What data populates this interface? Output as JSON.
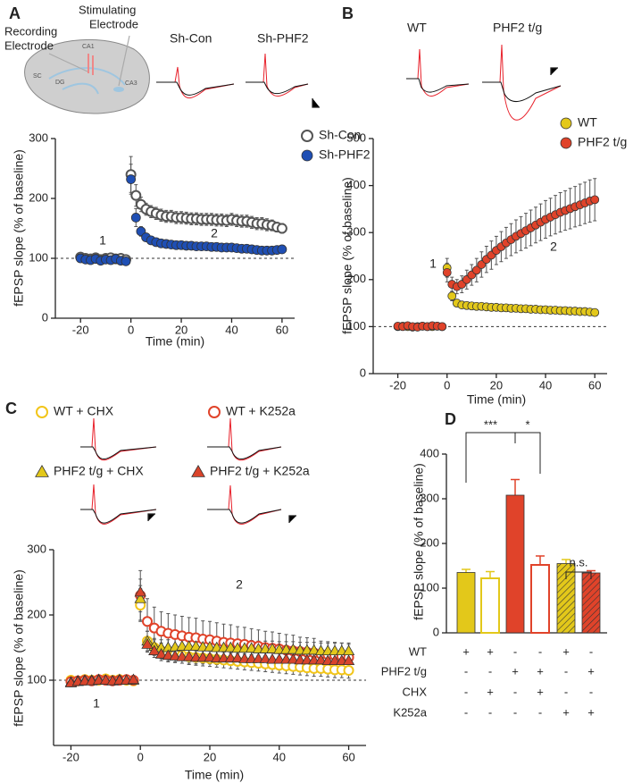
{
  "chart_data": [
    {
      "type": "scatter",
      "panel": "A",
      "x_label": "Time (min)",
      "y_label": "fEPSP slope (% of baseline)",
      "trace_labels": [
        "Sh-Con",
        "Sh-PHF2"
      ],
      "diagram_labels": {
        "recording": [
          "Recording",
          "Electrode"
        ],
        "stimulating": [
          "Stimulating",
          "Electrode"
        ],
        "regions": [
          "CA1",
          "DG",
          "SC",
          "CA3"
        ]
      },
      "annotations": [
        "1",
        "2"
      ],
      "annotation_colors": [
        "#222222",
        "#e8312a"
      ],
      "xlim": [
        -30,
        65
      ],
      "xticks": [
        -20,
        0,
        20,
        40,
        60
      ],
      "ylim": [
        0,
        300
      ],
      "yticks": [
        0,
        100,
        200,
        300
      ],
      "reference_line": 100,
      "x": [
        -20,
        -18,
        -16,
        -14,
        -12,
        -10,
        -8,
        -6,
        -4,
        -2,
        0,
        2,
        4,
        6,
        8,
        10,
        12,
        14,
        16,
        18,
        20,
        22,
        24,
        26,
        28,
        30,
        32,
        34,
        36,
        38,
        40,
        42,
        44,
        46,
        48,
        50,
        52,
        54,
        56,
        58,
        60
      ],
      "series": [
        {
          "name": "Sh-Con",
          "color": "#555555",
          "filled": false,
          "marker": "circle",
          "values": [
            102,
            100,
            99,
            101,
            98,
            100,
            101,
            99,
            100,
            98,
            240,
            205,
            190,
            182,
            178,
            175,
            172,
            170,
            170,
            168,
            168,
            167,
            166,
            166,
            165,
            165,
            165,
            164,
            164,
            163,
            165,
            163,
            162,
            162,
            160,
            158,
            158,
            156,
            155,
            152,
            150
          ],
          "errors": [
            5,
            5,
            5,
            5,
            5,
            5,
            5,
            5,
            5,
            5,
            30,
            18,
            12,
            10,
            10,
            10,
            10,
            10,
            10,
            10,
            10,
            10,
            10,
            10,
            10,
            10,
            10,
            10,
            10,
            10,
            10,
            10,
            10,
            10,
            10,
            10,
            10,
            10,
            9,
            8,
            8
          ]
        },
        {
          "name": "Sh-PHF2",
          "color": "#1f4fb4",
          "filled": true,
          "marker": "circle",
          "values": [
            100,
            98,
            97,
            99,
            96,
            98,
            97,
            99,
            96,
            95,
            232,
            168,
            145,
            135,
            130,
            127,
            125,
            124,
            123,
            122,
            122,
            121,
            121,
            120,
            120,
            120,
            119,
            119,
            118,
            118,
            118,
            117,
            116,
            116,
            115,
            114,
            113,
            113,
            113,
            114,
            115
          ],
          "errors": [
            5,
            5,
            5,
            5,
            5,
            5,
            5,
            5,
            5,
            5,
            25,
            15,
            8,
            6,
            6,
            6,
            6,
            6,
            6,
            6,
            6,
            6,
            6,
            6,
            6,
            6,
            6,
            6,
            6,
            6,
            6,
            6,
            6,
            6,
            6,
            6,
            6,
            6,
            6,
            6,
            6
          ]
        }
      ]
    },
    {
      "type": "scatter",
      "panel": "B",
      "x_label": "Time (min)",
      "y_label": "fEPSP slope (% of baseline)",
      "trace_labels": [
        "WT",
        "PHF2 t/g"
      ],
      "annotations": [
        "1",
        "2"
      ],
      "annotation_colors": [
        "#222222",
        "#e8312a"
      ],
      "xlim": [
        -30,
        65
      ],
      "xticks": [
        -20,
        0,
        20,
        40,
        60
      ],
      "ylim": [
        0,
        500
      ],
      "yticks": [
        0,
        100,
        200,
        300,
        400,
        500
      ],
      "reference_line": 100,
      "x": [
        -20,
        -18,
        -16,
        -14,
        -12,
        -10,
        -8,
        -6,
        -4,
        -2,
        0,
        2,
        4,
        6,
        8,
        10,
        12,
        14,
        16,
        18,
        20,
        22,
        24,
        26,
        28,
        30,
        32,
        34,
        36,
        38,
        40,
        42,
        44,
        46,
        48,
        50,
        52,
        54,
        56,
        58,
        60
      ],
      "series": [
        {
          "name": "WT",
          "color": "#e3c81a",
          "filled": true,
          "marker": "circle",
          "values": [
            100,
            101,
            100,
            99,
            100,
            101,
            100,
            100,
            101,
            100,
            225,
            165,
            150,
            146,
            145,
            144,
            143,
            143,
            142,
            141,
            141,
            140,
            140,
            139,
            139,
            138,
            138,
            137,
            137,
            136,
            136,
            135,
            135,
            134,
            134,
            133,
            133,
            132,
            132,
            131,
            130
          ],
          "errors": [
            5,
            5,
            5,
            5,
            5,
            5,
            5,
            5,
            5,
            5,
            20,
            10,
            8,
            6,
            6,
            6,
            6,
            6,
            6,
            6,
            6,
            6,
            6,
            6,
            6,
            6,
            6,
            6,
            6,
            6,
            6,
            6,
            6,
            6,
            6,
            6,
            6,
            6,
            6,
            6,
            6
          ]
        },
        {
          "name": "PHF2 t/g",
          "color": "#e0432a",
          "filled": true,
          "marker": "circle",
          "values": [
            101,
            100,
            102,
            100,
            99,
            101,
            100,
            102,
            101,
            100,
            215,
            190,
            185,
            190,
            200,
            210,
            220,
            232,
            243,
            252,
            262,
            270,
            278,
            285,
            292,
            298,
            304,
            310,
            316,
            322,
            328,
            333,
            338,
            343,
            347,
            351,
            355,
            359,
            363,
            367,
            370
          ],
          "errors": [
            6,
            6,
            6,
            6,
            6,
            6,
            6,
            6,
            6,
            6,
            20,
            15,
            15,
            18,
            20,
            22,
            25,
            27,
            28,
            30,
            30,
            32,
            33,
            34,
            35,
            36,
            37,
            38,
            38,
            39,
            40,
            40,
            41,
            42,
            42,
            43,
            43,
            44,
            44,
            45,
            45
          ]
        }
      ]
    },
    {
      "type": "scatter",
      "panel": "C",
      "x_label": "Time (min)",
      "y_label": "fEPSP slope (% of baseline)",
      "annotations": [
        "1",
        "2"
      ],
      "annotation_colors": [
        "#222222",
        "#e8312a"
      ],
      "xlim": [
        -25,
        65
      ],
      "xticks": [
        -20,
        0,
        20,
        40,
        60
      ],
      "ylim": [
        0,
        300
      ],
      "yticks": [
        100,
        200,
        300
      ],
      "reference_line": 100,
      "x": [
        -20,
        -18,
        -16,
        -14,
        -12,
        -10,
        -8,
        -6,
        -4,
        -2,
        0,
        2,
        4,
        6,
        8,
        10,
        12,
        14,
        16,
        18,
        20,
        22,
        24,
        26,
        28,
        30,
        32,
        34,
        36,
        38,
        40,
        42,
        44,
        46,
        48,
        50,
        52,
        54,
        56,
        58,
        60
      ],
      "series": [
        {
          "name": "WT + CHX",
          "color": "#f2c51a",
          "filled": false,
          "marker": "circle",
          "values": [
            100,
            99,
            101,
            100,
            100,
            102,
            100,
            101,
            100,
            99,
            215,
            160,
            150,
            145,
            142,
            140,
            138,
            136,
            135,
            134,
            133,
            132,
            131,
            130,
            129,
            128,
            127,
            126,
            125,
            124,
            123,
            122,
            121,
            120,
            119,
            118,
            118,
            117,
            116,
            116,
            115
          ],
          "errors": [
            6,
            6,
            6,
            6,
            6,
            6,
            6,
            6,
            6,
            6,
            25,
            15,
            12,
            12,
            12,
            12,
            12,
            12,
            12,
            12,
            12,
            12,
            12,
            12,
            12,
            12,
            12,
            12,
            12,
            12,
            12,
            12,
            12,
            12,
            12,
            12,
            12,
            12,
            12,
            12,
            12
          ]
        },
        {
          "name": "WT + K252a",
          "color": "#e0432a",
          "filled": false,
          "marker": "circle",
          "values": [
            98,
            99,
            100,
            99,
            101,
            100,
            99,
            100,
            101,
            100,
            230,
            190,
            180,
            175,
            172,
            170,
            168,
            166,
            165,
            163,
            162,
            160,
            158,
            157,
            156,
            155,
            153,
            152,
            150,
            149,
            148,
            146,
            145,
            144,
            143,
            142,
            140,
            139,
            138,
            137,
            135
          ],
          "errors": [
            6,
            6,
            6,
            6,
            6,
            6,
            6,
            6,
            6,
            6,
            38,
            35,
            32,
            30,
            30,
            30,
            30,
            30,
            30,
            28,
            28,
            28,
            28,
            28,
            26,
            26,
            26,
            25,
            25,
            25,
            24,
            24,
            24,
            22,
            22,
            22,
            20,
            20,
            20,
            20,
            20
          ]
        },
        {
          "name": "PHF2 t/g + CHX",
          "color": "#e3c81a",
          "filled": true,
          "marker": "triangle",
          "values": [
            97,
            99,
            100,
            100,
            101,
            100,
            99,
            101,
            100,
            100,
            225,
            160,
            152,
            150,
            150,
            151,
            152,
            152,
            152,
            151,
            151,
            150,
            150,
            150,
            149,
            149,
            149,
            148,
            148,
            148,
            147,
            147,
            147,
            146,
            146,
            146,
            145,
            145,
            145,
            145,
            145
          ],
          "errors": [
            6,
            6,
            6,
            6,
            6,
            6,
            6,
            6,
            6,
            6,
            20,
            15,
            12,
            12,
            12,
            12,
            12,
            12,
            12,
            12,
            12,
            12,
            12,
            12,
            12,
            12,
            12,
            12,
            12,
            12,
            12,
            12,
            12,
            12,
            12,
            12,
            12,
            12,
            12,
            12,
            12
          ]
        },
        {
          "name": "PHF2 t/g + K252a",
          "color": "#d9442b",
          "filled": true,
          "marker": "triangle",
          "values": [
            96,
            98,
            99,
            99,
            100,
            100,
            99,
            100,
            100,
            101,
            235,
            155,
            145,
            140,
            138,
            137,
            136,
            136,
            135,
            135,
            135,
            134,
            134,
            134,
            134,
            133,
            133,
            133,
            133,
            132,
            132,
            132,
            132,
            131,
            131,
            131,
            131,
            130,
            130,
            130,
            130
          ],
          "errors": [
            6,
            6,
            6,
            6,
            6,
            6,
            6,
            6,
            6,
            6,
            20,
            12,
            10,
            10,
            10,
            10,
            10,
            10,
            10,
            10,
            10,
            10,
            10,
            10,
            10,
            10,
            10,
            10,
            10,
            10,
            10,
            10,
            10,
            10,
            10,
            10,
            10,
            10,
            10,
            10,
            10
          ]
        }
      ]
    },
    {
      "type": "bar",
      "panel": "D",
      "y_label": "fEPSP slope (% of baseline)",
      "ylim": [
        0,
        400
      ],
      "yticks": [
        0,
        100,
        200,
        300,
        400
      ],
      "values": [
        135,
        122,
        308,
        152,
        155,
        134
      ],
      "errors": [
        7,
        15,
        35,
        20,
        9,
        5
      ],
      "colors": [
        "#e3c81a",
        "#e3c81a",
        "#e0432a",
        "#e0432a",
        "#e3c81a",
        "#e0432a"
      ],
      "fill_styles": [
        "solid",
        "open",
        "solid",
        "open",
        "hatched",
        "hatched"
      ],
      "significance": [
        "***",
        "*",
        "n.s."
      ],
      "table": {
        "rows": [
          {
            "label": "WT",
            "signs": [
              "+",
              "+",
              "-",
              "-",
              "+",
              "-"
            ]
          },
          {
            "label": "PHF2 t/g",
            "signs": [
              "-",
              "-",
              "+",
              "+",
              "-",
              "+"
            ]
          },
          {
            "label": "CHX",
            "signs": [
              "-",
              "+",
              "-",
              "+",
              "-",
              "-"
            ]
          },
          {
            "label": "K252a",
            "signs": [
              "-",
              "-",
              "-",
              "-",
              "+",
              "+"
            ]
          }
        ]
      }
    }
  ]
}
